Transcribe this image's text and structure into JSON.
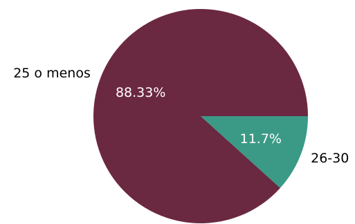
{
  "chart_data": {
    "type": "pie",
    "title": "",
    "slices": [
      {
        "label": "25 o menos",
        "value": 88.33,
        "pct_text": "88.33%",
        "color": "#6b2841"
      },
      {
        "label": "26-30",
        "value": 11.7,
        "pct_text": "11.7%",
        "color": "#3a9a86"
      }
    ],
    "start_angle_deg": 0,
    "direction": "counterclockwise"
  }
}
